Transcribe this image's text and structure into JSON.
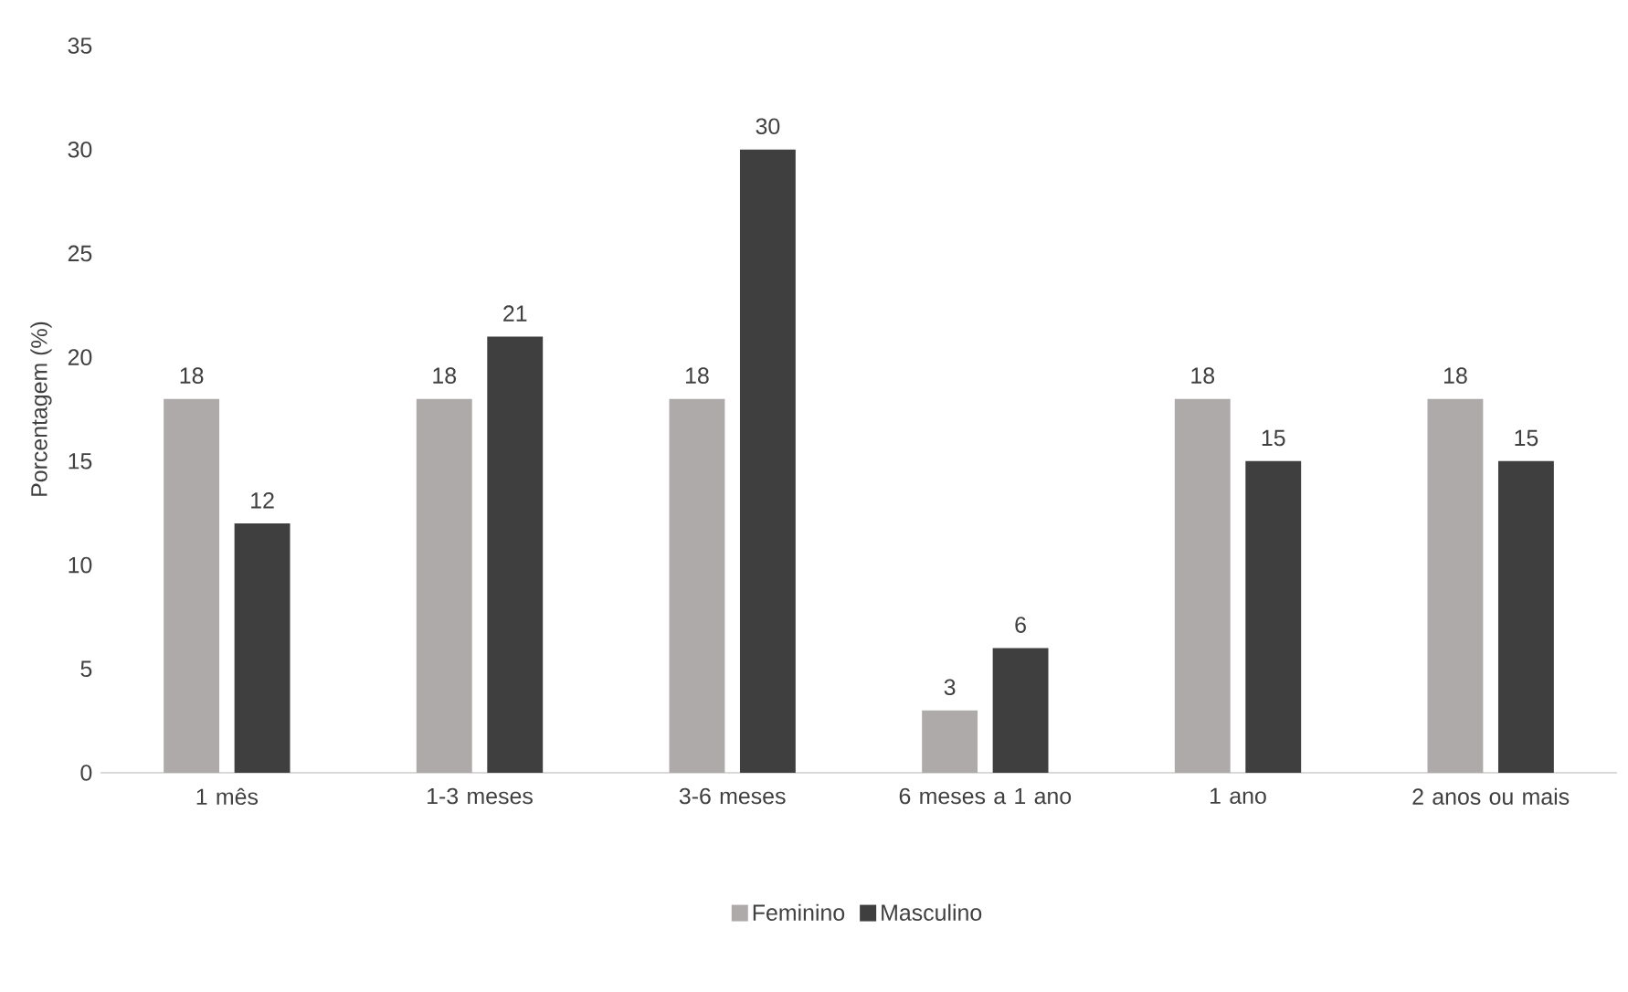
{
  "chart_data": {
    "type": "bar",
    "ylabel": "Porcentagem (%)",
    "categories": [
      "1 mês",
      "1-3 meses",
      "3-6 meses",
      "6 meses a 1 ano",
      "1 ano",
      "2 anos ou mais"
    ],
    "series": [
      {
        "name": "Feminino",
        "color": "#aeaaaa",
        "values": [
          18,
          18,
          18,
          3,
          18,
          18
        ]
      },
      {
        "name": "Masculino",
        "color": "#3f3f3f",
        "values": [
          12,
          21,
          30,
          6,
          15,
          15
        ]
      }
    ],
    "ylim": [
      0,
      35
    ],
    "yticks": [
      0,
      5,
      10,
      15,
      20,
      25,
      30,
      35
    ],
    "data_labels": true,
    "legend": "bottom"
  }
}
